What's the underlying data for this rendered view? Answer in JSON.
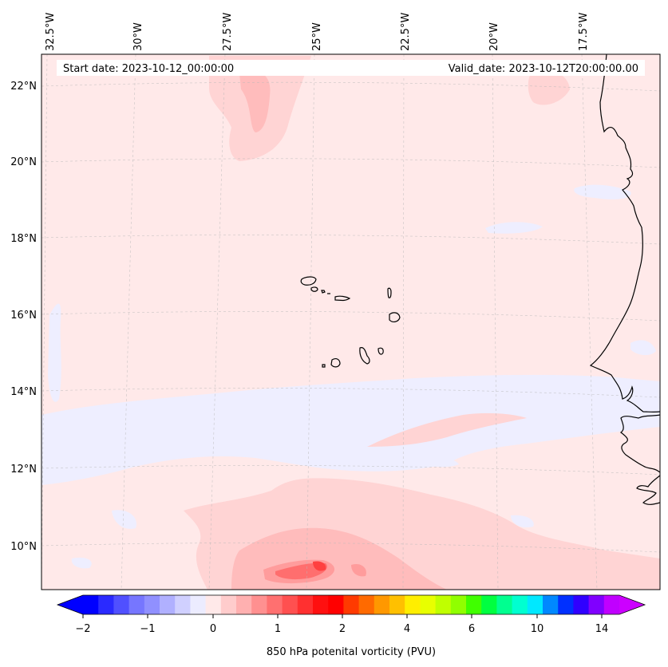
{
  "header": {
    "start_date": "Start date: 2023-10-12_00:00:00",
    "valid_date": "Valid_date: 2023-10-12T20:00:00.00"
  },
  "longitude_labels": [
    "32.5°W",
    "30°W",
    "27.5°W",
    "25°W",
    "22.5°W",
    "20°W",
    "17.5°W"
  ],
  "latitude_labels": [
    "22°N",
    "20°N",
    "18°N",
    "16°N",
    "14°N",
    "12°N",
    "10°N"
  ],
  "colorbar": {
    "title": "850 hPa potenital vorticity (PVU)",
    "tick_labels": [
      "−2",
      "−1",
      "0",
      "1",
      "2",
      "4",
      "6",
      "10",
      "14"
    ],
    "colors": [
      "#0000ff",
      "#2a2aff",
      "#5050ff",
      "#7676ff",
      "#9090ff",
      "#b0b0ff",
      "#d0d0ff",
      "#ececff",
      "#ffe9e9",
      "#ffcccc",
      "#ffb0b0",
      "#ff9090",
      "#ff7070",
      "#ff5050",
      "#ff3030",
      "#ff1010",
      "#ff0000",
      "#ff3a00",
      "#ff6a00",
      "#ff9800",
      "#ffc000",
      "#ffee00",
      "#e8ff00",
      "#c0ff00",
      "#90ff00",
      "#40ff00",
      "#00ff40",
      "#00ff90",
      "#00ffd0",
      "#00e8ff",
      "#0088ff",
      "#0030ff",
      "#3000ff",
      "#8000ff",
      "#c000ff"
    ],
    "under_color": "#0000ff",
    "over_color": "#cc00ff"
  },
  "map_colors": {
    "background": "#ffe9e9",
    "light_blue": "#eeeeff",
    "pink1": "#ffd4d4",
    "pink2": "#ffbcbc",
    "red1": "#ff9c9c",
    "red2": "#ff6e6e",
    "red3": "#ff4040"
  }
}
